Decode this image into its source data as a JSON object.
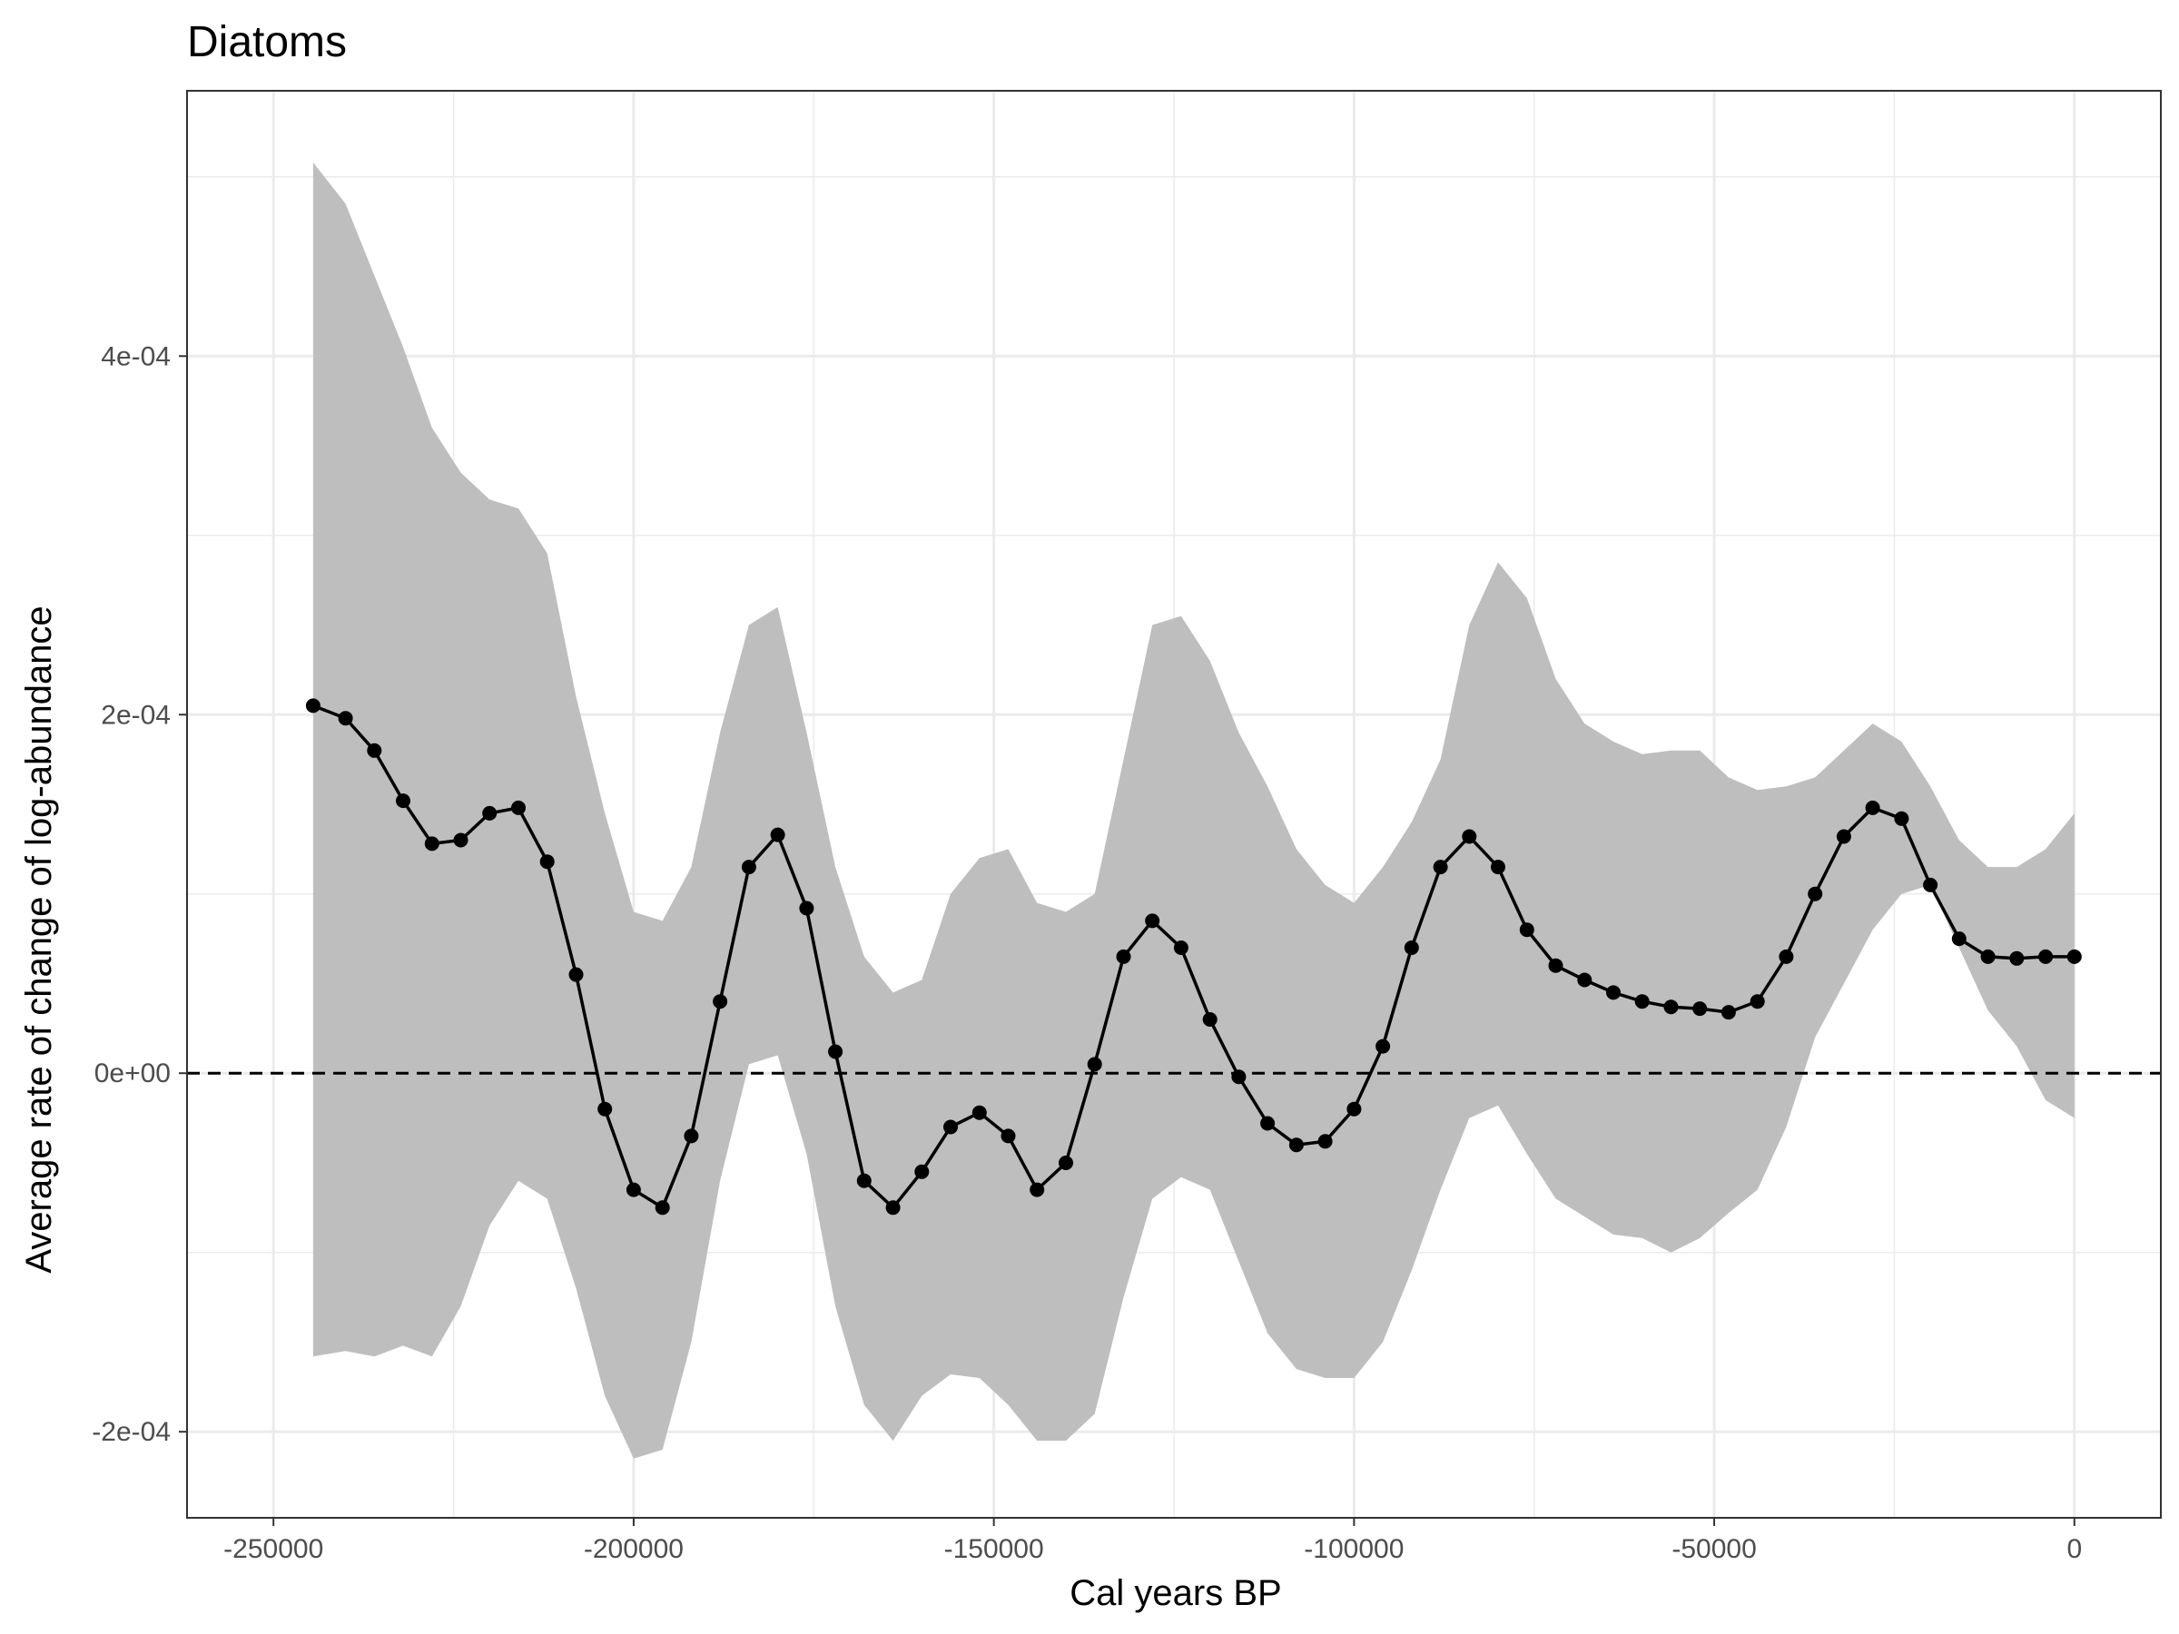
{
  "chart_data": {
    "type": "line",
    "title": "Diatoms",
    "xlabel": "Cal years BP",
    "ylabel": "Average rate of change of log-abundance",
    "xlim": [
      -262000,
      12000
    ],
    "ylim": [
      -0.000248,
      0.000548
    ],
    "x_ticks": [
      -250000,
      -200000,
      -150000,
      -100000,
      -50000,
      0
    ],
    "x_tick_labels": [
      "-250000",
      "-200000",
      "-150000",
      "-100000",
      "-50000",
      "0"
    ],
    "y_ticks": [
      -0.0002,
      0,
      0.0002,
      0.0004
    ],
    "y_tick_labels": [
      "-2e-04",
      "0e+00",
      "2e-04",
      "4e-04"
    ],
    "reference_line": 0,
    "grid": true,
    "colors": {
      "line": "#000000",
      "ribbon": "#bebebe",
      "grid": "#ebebeb",
      "panel_border": "#333333"
    },
    "series": [
      {
        "x": [
          -244500,
          -240000,
          -236000,
          -232000,
          -228000,
          -224000,
          -220000,
          -216000,
          -212000,
          -208000,
          -204000,
          -200000,
          -196000,
          -192000,
          -188000,
          -184000,
          -180000,
          -176000,
          -172000,
          -168000,
          -164000,
          -160000,
          -156000,
          -152000,
          -148000,
          -144000,
          -140000,
          -136000,
          -132000,
          -128000,
          -124000,
          -120000,
          -116000,
          -112000,
          -108000,
          -104000,
          -100000,
          -96000,
          -92000,
          -88000,
          -84000,
          -80000,
          -76000,
          -72000,
          -68000,
          -64000,
          -60000,
          -56000,
          -52000,
          -48000,
          -44000,
          -40000,
          -36000,
          -32000,
          -28000,
          -24000,
          -20000,
          -16000,
          -12000,
          -8000,
          -4000,
          0
        ],
        "y": [
          0.000205,
          0.000198,
          0.00018,
          0.000152,
          0.000128,
          0.00013,
          0.000145,
          0.000148,
          0.000118,
          5.5e-05,
          -2e-05,
          -6.5e-05,
          -7.5e-05,
          -3.5e-05,
          4e-05,
          0.000115,
          0.000133,
          9.2e-05,
          1.2e-05,
          -6e-05,
          -7.5e-05,
          -5.5e-05,
          -3e-05,
          -2.2e-05,
          -3.5e-05,
          -6.5e-05,
          -5e-05,
          5e-06,
          6.5e-05,
          8.5e-05,
          7e-05,
          3e-05,
          -2e-06,
          -2.8e-05,
          -4e-05,
          -3.8e-05,
          -2e-05,
          1.5e-05,
          7e-05,
          0.000115,
          0.000132,
          0.000115,
          8e-05,
          6e-05,
          5.2e-05,
          4.5e-05,
          4e-05,
          3.7e-05,
          3.6e-05,
          3.4e-05,
          4e-05,
          6.5e-05,
          0.0001,
          0.000132,
          0.000148,
          0.000142,
          0.000105,
          7.5e-05,
          6.5e-05,
          6.4e-05,
          6.5e-05,
          6.5e-05
        ],
        "lower": [
          -0.000158,
          -0.000155,
          -0.000158,
          -0.000152,
          -0.000158,
          -0.00013,
          -8.5e-05,
          -6e-05,
          -7e-05,
          -0.00012,
          -0.00018,
          -0.000215,
          -0.00021,
          -0.00015,
          -6e-05,
          5e-06,
          1e-05,
          -4.5e-05,
          -0.00013,
          -0.000185,
          -0.000205,
          -0.00018,
          -0.000168,
          -0.00017,
          -0.000185,
          -0.000205,
          -0.000205,
          -0.00019,
          -0.000125,
          -7e-05,
          -5.8e-05,
          -6.5e-05,
          -0.000105,
          -0.000145,
          -0.000165,
          -0.00017,
          -0.00017,
          -0.00015,
          -0.00011,
          -6.5e-05,
          -2.5e-05,
          -1.8e-05,
          -4.5e-05,
          -7e-05,
          -8e-05,
          -9e-05,
          -9.2e-05,
          -0.0001,
          -9.2e-05,
          -7.8e-05,
          -6.5e-05,
          -3e-05,
          2e-05,
          5e-05,
          8e-05,
          0.0001,
          0.000105,
          7e-05,
          3.5e-05,
          1.5e-05,
          -1.5e-05,
          -2.5e-05
        ],
        "upper": [
          0.000508,
          0.000485,
          0.000445,
          0.000405,
          0.00036,
          0.000335,
          0.00032,
          0.000315,
          0.00029,
          0.00021,
          0.000145,
          9e-05,
          8.5e-05,
          0.000115,
          0.00019,
          0.00025,
          0.00026,
          0.00019,
          0.000115,
          6.5e-05,
          4.5e-05,
          5.2e-05,
          0.0001,
          0.00012,
          0.000125,
          9.5e-05,
          9e-05,
          0.0001,
          0.000175,
          0.00025,
          0.000255,
          0.00023,
          0.00019,
          0.00016,
          0.000125,
          0.000105,
          9.5e-05,
          0.000115,
          0.00014,
          0.000175,
          0.00025,
          0.000285,
          0.000265,
          0.00022,
          0.000195,
          0.000185,
          0.000178,
          0.00018,
          0.00018,
          0.000165,
          0.000158,
          0.00016,
          0.000165,
          0.00018,
          0.000195,
          0.000185,
          0.00016,
          0.00013,
          0.000115,
          0.000115,
          0.000125,
          0.000145
        ]
      }
    ]
  }
}
